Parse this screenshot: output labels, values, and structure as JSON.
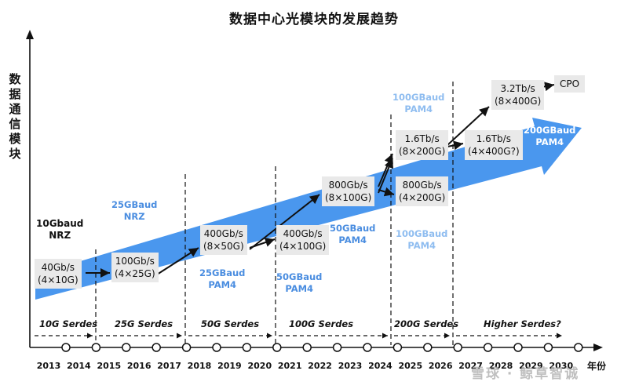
{
  "title": "数据中心光模块的发展趋势",
  "y_axis_label": "数据通信模块",
  "x_axis_unit": "年份",
  "years": [
    "2013",
    "2014",
    "2015",
    "2016",
    "2017",
    "2018",
    "2019",
    "2020",
    "2021",
    "2022",
    "2023",
    "2024",
    "2025",
    "2026",
    "2027",
    "2028",
    "2029",
    "2030"
  ],
  "stages": [
    {
      "label": "40Gb/s",
      "sub": "(4×10G)"
    },
    {
      "label": "100Gb/s",
      "sub": "(4×25G)"
    },
    {
      "label": "400Gb/s",
      "sub": "(8×50G)"
    },
    {
      "label": "400Gb/s",
      "sub": "(4×100G)"
    },
    {
      "label": "800Gb/s",
      "sub": "(8×100G)"
    },
    {
      "label": "800Gb/s",
      "sub": "(4×200G)"
    },
    {
      "label": "1.6Tb/s",
      "sub": "(8×200G)"
    },
    {
      "label": "1.6Tb/s",
      "sub": "(4×400G?)"
    },
    {
      "label": "3.2Tb/s",
      "sub": "(8×400G)"
    },
    {
      "label": "CPO",
      "sub": ""
    }
  ],
  "modulation": {
    "nrz10": {
      "l1": "10Gbaud",
      "l2": "NRZ"
    },
    "nrz25": {
      "l1": "25GBaud",
      "l2": "NRZ"
    },
    "pam4_25": {
      "l1": "25GBaud",
      "l2": "PAM4"
    },
    "pam4_50a": {
      "l1": "50GBaud",
      "l2": "PAM4"
    },
    "pam4_50b": {
      "l1": "50GBaud",
      "l2": "PAM4"
    },
    "pam4_100a": {
      "l1": "100GBaud",
      "l2": "PAM4"
    },
    "pam4_100b": {
      "l1": "100GBaud",
      "l2": "PAM4"
    },
    "pam4_200": {
      "l1": "200GBaud",
      "l2": "PAM4"
    }
  },
  "serdes": [
    "10G Serdes",
    "25G Serdes",
    "50G Serdes",
    "100G Serdes",
    "200G Serdes",
    "Higher Serdes?"
  ],
  "watermark": "雪球 · 鲸草智诚",
  "colors": {
    "band": "#4a97ee",
    "blue_text": "#4a8de0",
    "light_blue_text": "#8fbdf0",
    "box": "#e9e9e9"
  }
}
